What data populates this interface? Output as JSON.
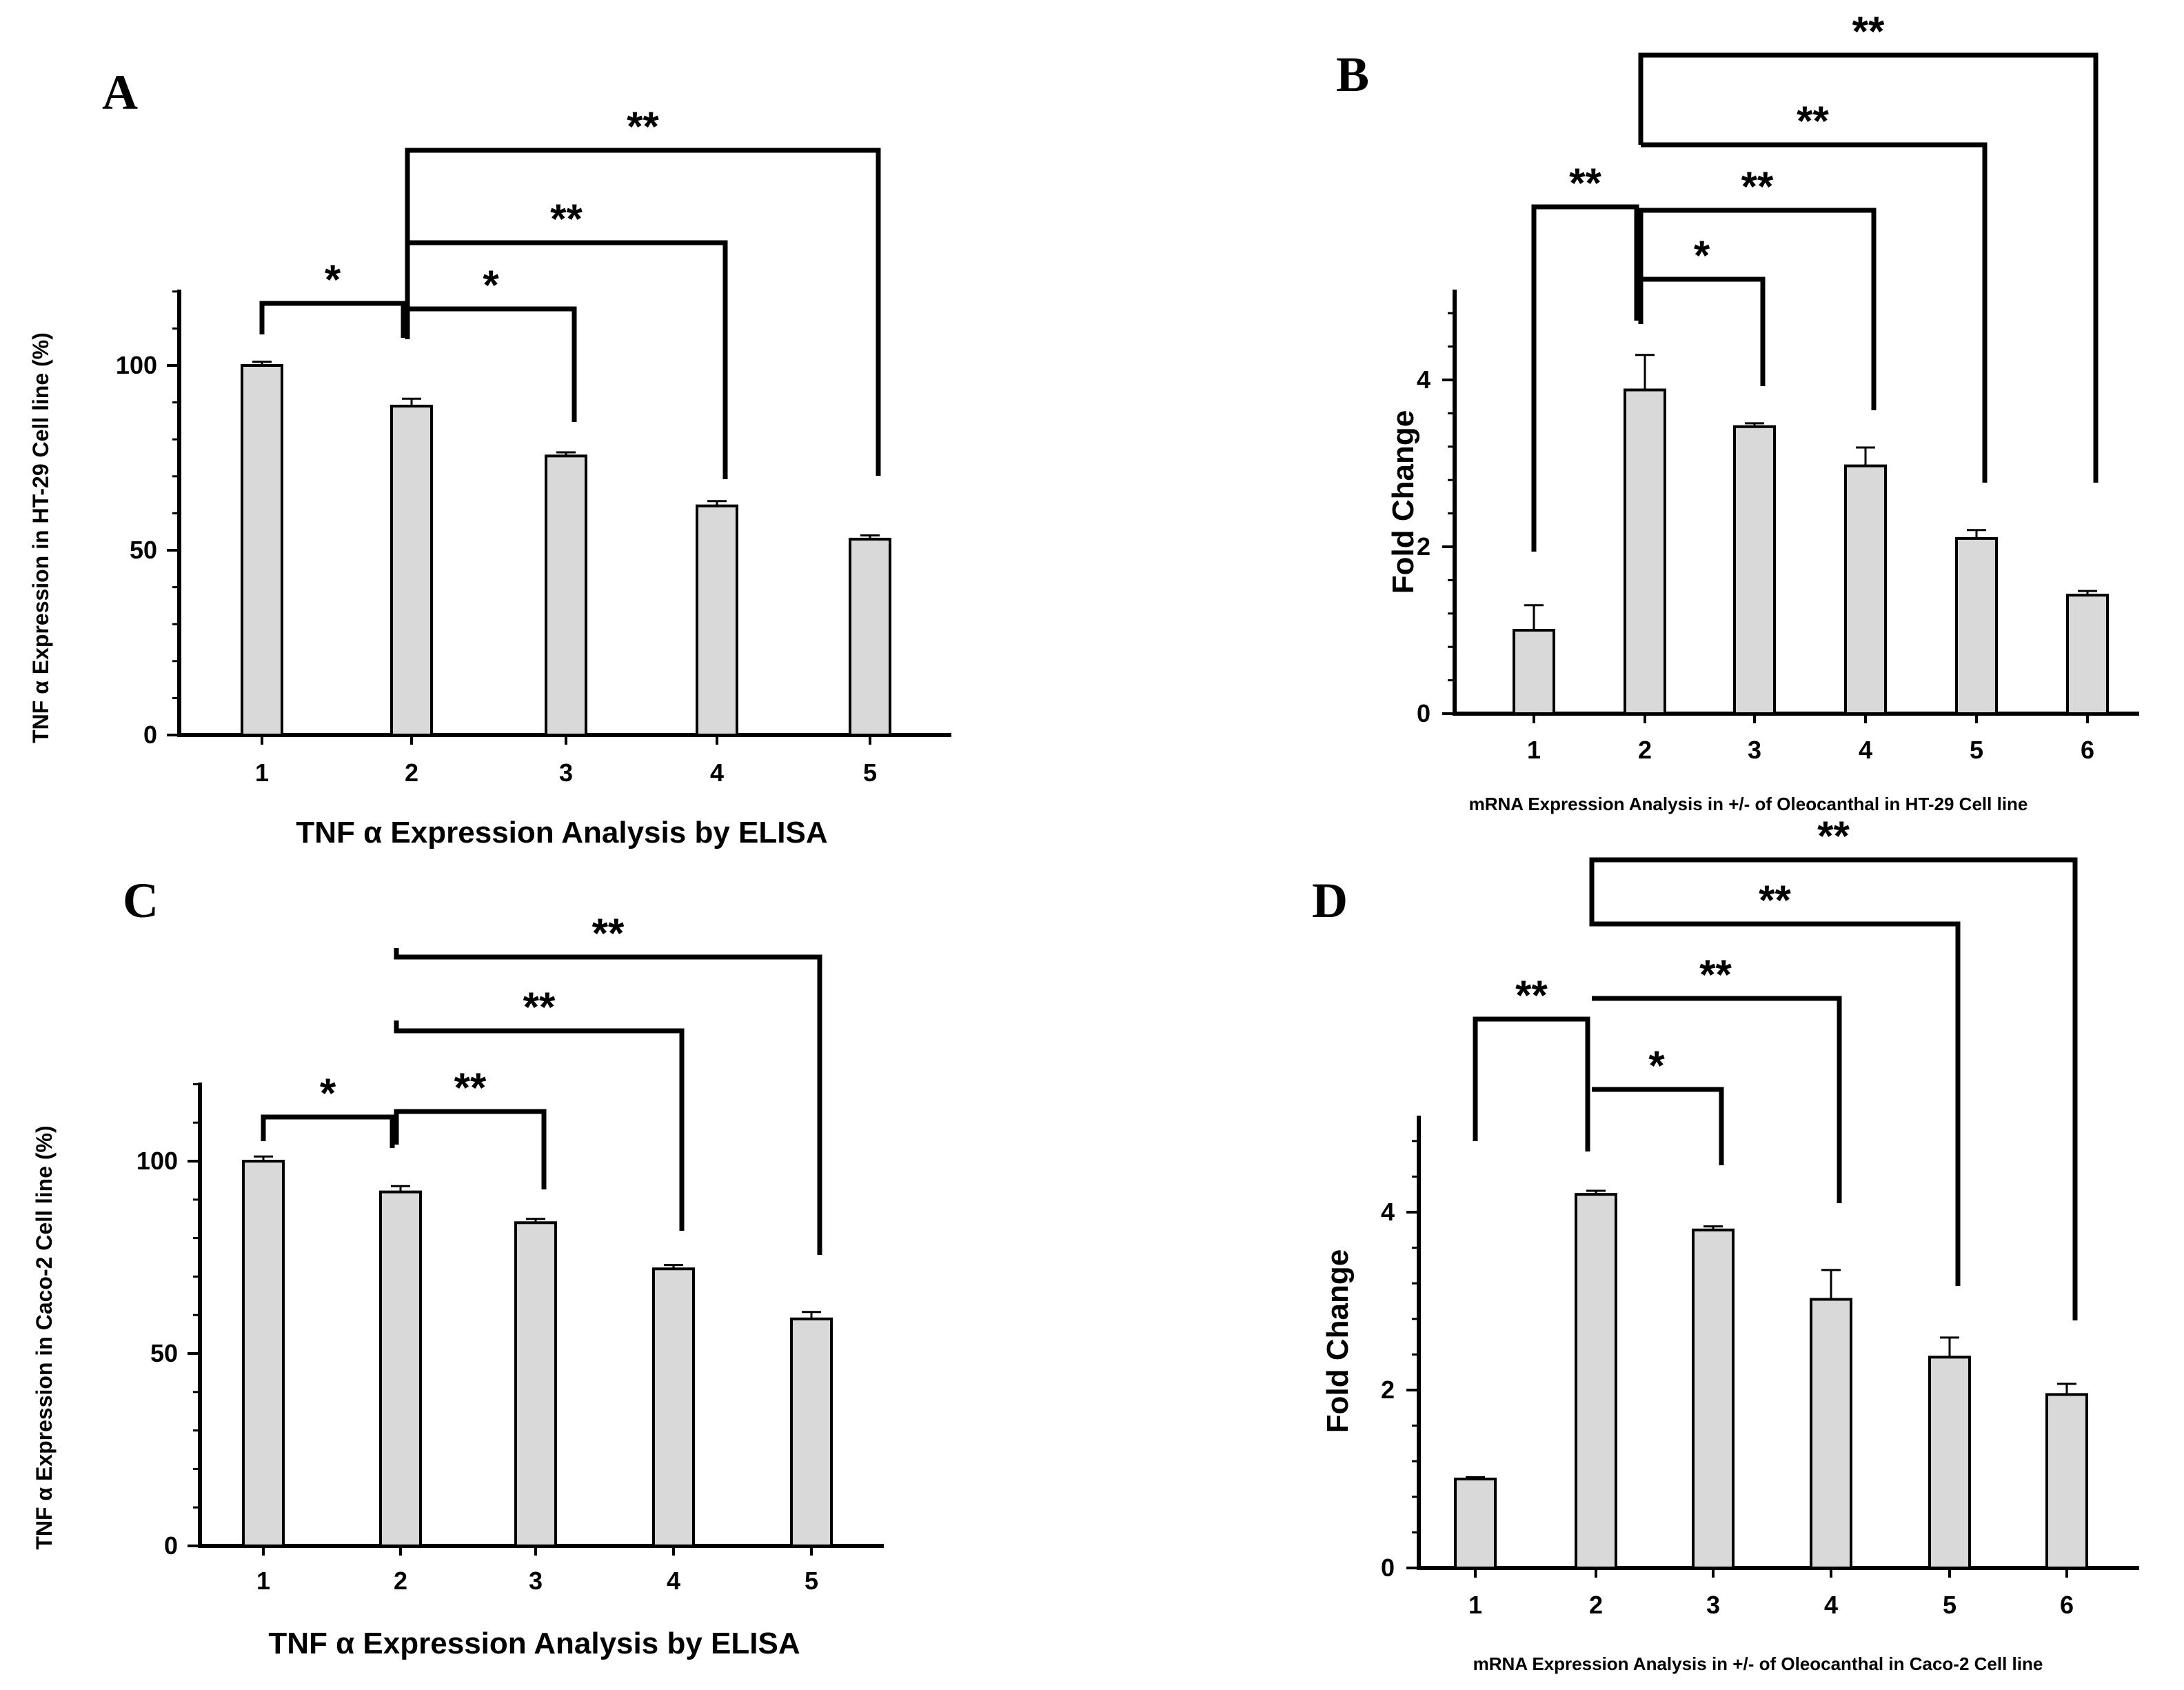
{
  "panels": [
    {
      "letter": "A",
      "ylabel": "TNF α Expression in  HT-29 Cell line (%)",
      "xlabel": "TNF α Expression Analysis by ELISA",
      "categories": [
        "1",
        "2",
        "3",
        "4",
        "5"
      ],
      "yticks": [
        0,
        50,
        100
      ],
      "ylim": [
        0,
        120
      ],
      "values": [
        100,
        89,
        75.5,
        62,
        53
      ],
      "errors": [
        1,
        2,
        1,
        1.3,
        1
      ],
      "brackets": [
        {
          "from": 1,
          "to": 2,
          "label": "*"
        },
        {
          "from": 2,
          "to": 3,
          "label": "*"
        },
        {
          "from": 2,
          "to": 4,
          "label": "**"
        },
        {
          "from": 2,
          "to": 5,
          "label": "**"
        }
      ]
    },
    {
      "letter": "B",
      "ylabel": "Fold Change",
      "xlabel": "mRNA Expression Analysis in +/- of Oleocanthal in HT-29 Cell line",
      "categories": [
        "1",
        "2",
        "3",
        "4",
        "5",
        "6"
      ],
      "yticks": [
        0,
        2,
        4
      ],
      "ylim": [
        0,
        5
      ],
      "values": [
        1.0,
        3.88,
        3.44,
        2.97,
        2.1,
        1.42
      ],
      "errors": [
        0.3,
        0.42,
        0.04,
        0.22,
        0.1,
        0.05
      ],
      "brackets": [
        {
          "from": 1,
          "to": 2,
          "label": "**"
        },
        {
          "from": 2,
          "to": 3,
          "label": "*"
        },
        {
          "from": 2,
          "to": 4,
          "label": "**"
        },
        {
          "from": 2,
          "to": 5,
          "label": "**"
        },
        {
          "from": 2,
          "to": 6,
          "label": "**"
        }
      ]
    },
    {
      "letter": "C",
      "ylabel": "TNF α Expression in  Caco-2 Cell line (%)",
      "xlabel": "TNF α Expression Analysis by ELISA",
      "categories": [
        "1",
        "2",
        "3",
        "4",
        "5"
      ],
      "yticks": [
        0,
        50,
        100
      ],
      "ylim": [
        0,
        120
      ],
      "values": [
        100,
        92,
        84,
        72,
        59
      ],
      "errors": [
        1.2,
        1.5,
        1,
        1,
        1.8
      ],
      "brackets": [
        {
          "from": 1,
          "to": 2,
          "label": "*"
        },
        {
          "from": 2,
          "to": 3,
          "label": "**"
        },
        {
          "from": 2,
          "to": 4,
          "label": "**"
        },
        {
          "from": 2,
          "to": 5,
          "label": "**"
        }
      ]
    },
    {
      "letter": "D",
      "ylabel": "Fold Change",
      "xlabel": "mRNA Expression Analysis in +/- of Oleocanthal in Caco-2 Cell line",
      "categories": [
        "1",
        "2",
        "3",
        "4",
        "5",
        "6"
      ],
      "yticks": [
        0,
        2,
        4
      ],
      "ylim": [
        0,
        5
      ],
      "values": [
        1.0,
        4.2,
        3.8,
        3.02,
        2.37,
        1.95
      ],
      "errors": [
        0.02,
        0.04,
        0.04,
        0.33,
        0.22,
        0.12
      ],
      "brackets": [
        {
          "from": 1,
          "to": 2,
          "label": "**"
        },
        {
          "from": 2,
          "to": 3,
          "label": "*"
        },
        {
          "from": 2,
          "to": 4,
          "label": "**"
        },
        {
          "from": 2,
          "to": 5,
          "label": "**"
        },
        {
          "from": 2,
          "to": 6,
          "label": "**"
        }
      ]
    }
  ],
  "chart_data": [
    {
      "type": "bar",
      "title": "A",
      "categories": [
        "1",
        "2",
        "3",
        "4",
        "5"
      ],
      "values": [
        100,
        89,
        75.5,
        62,
        53
      ],
      "error_bars": [
        1,
        2,
        1,
        1.3,
        1
      ],
      "xlabel": "TNF α Expression Analysis by ELISA",
      "ylabel": "TNF α Expression in  HT-29 Cell line (%)",
      "ylim": [
        0,
        120
      ],
      "yticks": [
        0,
        50,
        100
      ],
      "significance": [
        [
          "1",
          "2",
          "*"
        ],
        [
          "2",
          "3",
          "*"
        ],
        [
          "2",
          "4",
          "**"
        ],
        [
          "2",
          "5",
          "**"
        ]
      ],
      "grid": false
    },
    {
      "type": "bar",
      "title": "B",
      "categories": [
        "1",
        "2",
        "3",
        "4",
        "5",
        "6"
      ],
      "values": [
        1.0,
        3.88,
        3.44,
        2.97,
        2.1,
        1.42
      ],
      "error_bars": [
        0.3,
        0.42,
        0.04,
        0.22,
        0.1,
        0.05
      ],
      "xlabel": "mRNA Expression Analysis in +/- of Oleocanthal in HT-29 Cell line",
      "ylabel": "Fold Change",
      "ylim": [
        0,
        5
      ],
      "yticks": [
        0,
        2,
        4
      ],
      "significance": [
        [
          "1",
          "2",
          "**"
        ],
        [
          "2",
          "3",
          "*"
        ],
        [
          "2",
          "4",
          "**"
        ],
        [
          "2",
          "5",
          "**"
        ],
        [
          "2",
          "6",
          "**"
        ]
      ],
      "grid": false
    },
    {
      "type": "bar",
      "title": "C",
      "categories": [
        "1",
        "2",
        "3",
        "4",
        "5"
      ],
      "values": [
        100,
        92,
        84,
        72,
        59
      ],
      "error_bars": [
        1.2,
        1.5,
        1,
        1,
        1.8
      ],
      "xlabel": "TNF α Expression Analysis by ELISA",
      "ylabel": "TNF α Expression in  Caco-2 Cell line (%)",
      "ylim": [
        0,
        120
      ],
      "yticks": [
        0,
        50,
        100
      ],
      "significance": [
        [
          "1",
          "2",
          "*"
        ],
        [
          "2",
          "3",
          "**"
        ],
        [
          "2",
          "4",
          "**"
        ],
        [
          "2",
          "5",
          "**"
        ]
      ],
      "grid": false
    },
    {
      "type": "bar",
      "title": "D",
      "categories": [
        "1",
        "2",
        "3",
        "4",
        "5",
        "6"
      ],
      "values": [
        1.0,
        4.2,
        3.8,
        3.02,
        2.37,
        1.95
      ],
      "error_bars": [
        0.02,
        0.04,
        0.04,
        0.33,
        0.22,
        0.12
      ],
      "xlabel": "mRNA Expression Analysis in +/- of Oleocanthal in Caco-2 Cell line",
      "ylabel": "Fold Change",
      "ylim": [
        0,
        5
      ],
      "yticks": [
        0,
        2,
        4
      ],
      "significance": [
        [
          "1",
          "2",
          "**"
        ],
        [
          "2",
          "3",
          "*"
        ],
        [
          "2",
          "4",
          "**"
        ],
        [
          "2",
          "5",
          "**"
        ],
        [
          "2",
          "6",
          "**"
        ]
      ],
      "grid": false
    }
  ]
}
